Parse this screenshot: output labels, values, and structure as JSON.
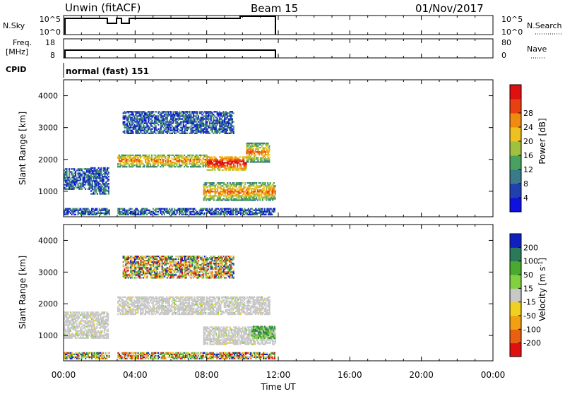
{
  "header": {
    "station": "Unwin (fitACF)",
    "beam": "Beam 15",
    "date": "01/Nov/2017"
  },
  "status": {
    "nsky_label": "N.Sky",
    "nsky_top": "10^5",
    "nsky_bottom": "10^0",
    "nsearch_label": "N.Search",
    "nsearch_top": "10^5",
    "nsearch_bottom": "10^0",
    "freq_label": "Freq.",
    "freq_unit": "[MHz]",
    "freq_top": "18",
    "freq_bottom": "8",
    "nave_label": "Nave",
    "nave_top": "80",
    "nave_bottom": "0",
    "cpid_label": "CPID",
    "cpid_value": "normal (fast) 151"
  },
  "chart_data": [
    {
      "type": "heatmap",
      "quantity": "Power",
      "ylabel": "Slant Range [km]",
      "colorbar_label": "Power [dB]",
      "ylim": [
        200,
        4500
      ],
      "yticks": [
        "1000",
        "2000",
        "3000",
        "4000"
      ],
      "xlim": [
        0,
        24
      ],
      "colorbar_ticks": [
        "4",
        "8",
        "12",
        "16",
        "20",
        "24",
        "28"
      ],
      "colorbar_colors": [
        "#1010e0",
        "#2040b0",
        "#3a7a8a",
        "#4aa060",
        "#a0c040",
        "#f0c020",
        "#f08a10",
        "#e84010",
        "#e01010"
      ],
      "data_time_span_h": [
        0,
        12
      ],
      "bands": [
        {
          "t0": 0.0,
          "t1": 1.5,
          "r0": 1050,
          "r1": 1700,
          "level": "low"
        },
        {
          "t0": 1.5,
          "t1": 2.5,
          "r0": 900,
          "r1": 1750,
          "level": "low"
        },
        {
          "t0": 3.0,
          "t1": 8.0,
          "r0": 1750,
          "r1": 2150,
          "level": "mid"
        },
        {
          "t0": 8.0,
          "t1": 10.2,
          "r0": 1650,
          "r1": 2100,
          "level": "high"
        },
        {
          "t0": 10.2,
          "t1": 11.5,
          "r0": 1900,
          "r1": 2500,
          "level": "mid"
        },
        {
          "t0": 7.8,
          "t1": 11.8,
          "r0": 700,
          "r1": 1250,
          "level": "mid"
        },
        {
          "t0": 3.3,
          "t1": 9.5,
          "r0": 2800,
          "r1": 3500,
          "level": "low"
        },
        {
          "t0": 0.0,
          "t1": 11.8,
          "r0": 250,
          "r1": 450,
          "level": "low"
        }
      ]
    },
    {
      "type": "heatmap",
      "quantity": "Velocity",
      "ylabel": "Slant Range [km]",
      "colorbar_label": "Velocity [m s^-1]",
      "ylim": [
        200,
        4500
      ],
      "yticks": [
        "1000",
        "2000",
        "3000",
        "4000"
      ],
      "xlim": [
        0,
        24
      ],
      "colorbar_ticks": [
        "200",
        "100",
        "50",
        "15",
        "-15",
        "-50",
        "-100",
        "-200"
      ],
      "colorbar_colors": [
        "#1020c0",
        "#2a7a5a",
        "#4aaa30",
        "#80d040",
        "#c8c8c8",
        "#f0d020",
        "#f0a010",
        "#e86010",
        "#e01010"
      ],
      "data_time_span_h": [
        0,
        12
      ],
      "bands": [
        {
          "t0": 0.0,
          "t1": 2.5,
          "r0": 900,
          "r1": 1750,
          "level": "ground"
        },
        {
          "t0": 3.0,
          "t1": 11.5,
          "r0": 1650,
          "r1": 2200,
          "level": "ground"
        },
        {
          "t0": 7.8,
          "t1": 11.8,
          "r0": 700,
          "r1": 1250,
          "level": "ground"
        },
        {
          "t0": 10.5,
          "t1": 11.8,
          "r0": 900,
          "r1": 1300,
          "level": "pos"
        },
        {
          "t0": 3.3,
          "t1": 9.5,
          "r0": 2800,
          "r1": 3500,
          "level": "mixed"
        },
        {
          "t0": 0.0,
          "t1": 11.8,
          "r0": 250,
          "r1": 450,
          "level": "mixed"
        }
      ]
    }
  ],
  "xaxis": {
    "ticks": [
      "00:00",
      "04:00",
      "08:00",
      "12:00",
      "16:00",
      "20:00",
      "00:00"
    ],
    "label": "Time UT"
  }
}
